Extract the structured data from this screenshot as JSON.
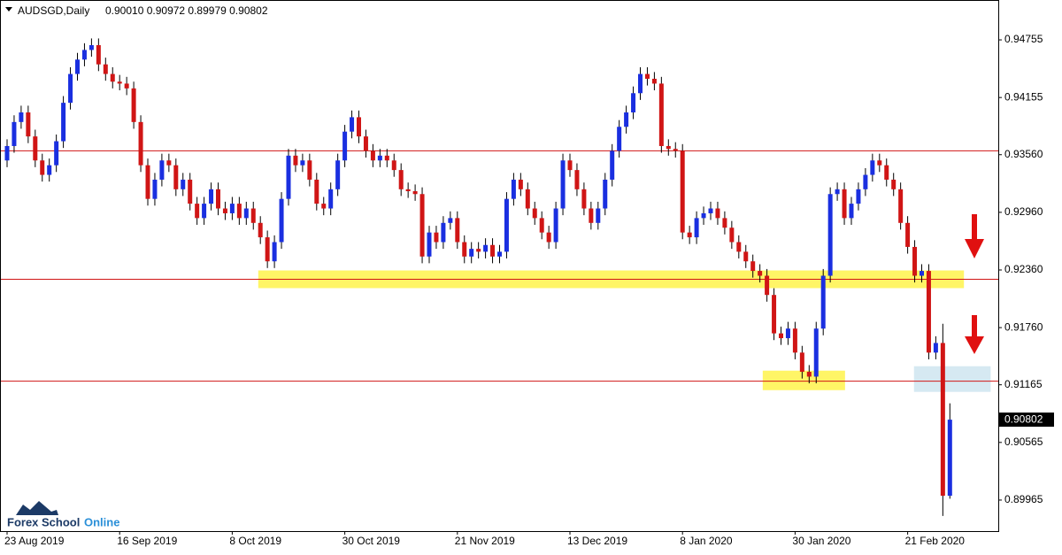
{
  "chart_data": {
    "type": "candlestick",
    "title": "AUDSGD,Daily",
    "ohlc_text": "0.90010 0.90972 0.89979 0.90802",
    "watermark": [
      "Forex School",
      "Online"
    ],
    "up_color": "#1a2fe0",
    "down_color": "#d01515",
    "wick_color": "#000000",
    "categories": [
      "23 Aug 2019",
      null,
      null,
      null,
      null,
      null,
      null,
      null,
      null,
      null,
      null,
      null,
      null,
      null,
      null,
      null,
      "16 Sep 2019",
      null,
      null,
      null,
      null,
      null,
      null,
      null,
      null,
      null,
      null,
      null,
      null,
      null,
      null,
      null,
      "8 Oct 2019",
      null,
      null,
      null,
      null,
      null,
      null,
      null,
      null,
      null,
      null,
      null,
      null,
      null,
      null,
      null,
      "30 Oct 2019",
      null,
      null,
      null,
      null,
      null,
      null,
      null,
      null,
      null,
      null,
      null,
      null,
      null,
      null,
      null,
      "21 Nov 2019",
      null,
      null,
      null,
      null,
      null,
      null,
      null,
      null,
      null,
      null,
      null,
      null,
      null,
      null,
      null,
      "13 Dec 2019",
      null,
      null,
      null,
      null,
      null,
      null,
      null,
      null,
      null,
      null,
      null,
      null,
      null,
      null,
      null,
      "8 Jan 2020",
      null,
      null,
      null,
      null,
      null,
      null,
      null,
      null,
      null,
      null,
      null,
      null,
      null,
      null,
      null,
      "30 Jan 2020",
      null,
      null,
      null,
      null,
      null,
      null,
      null,
      null,
      null,
      null,
      null,
      null,
      null,
      null,
      null,
      "21 Feb 2020",
      null,
      null,
      null,
      null,
      null,
      null
    ],
    "open": [
      0.935,
      0.9365,
      0.939,
      0.94,
      0.9375,
      0.935,
      0.9335,
      0.9345,
      0.937,
      0.941,
      0.944,
      0.9455,
      0.9465,
      0.947,
      0.945,
      0.944,
      0.9432,
      0.943,
      0.9425,
      0.939,
      0.9345,
      0.931,
      0.933,
      0.935,
      0.9345,
      0.932,
      0.933,
      0.9305,
      0.929,
      0.9305,
      0.932,
      0.93,
      0.9295,
      0.9305,
      0.929,
      0.93,
      0.9285,
      0.927,
      0.9245,
      0.9265,
      0.931,
      0.9355,
      0.9345,
      0.935,
      0.933,
      0.9305,
      0.93,
      0.932,
      0.935,
      0.938,
      0.9395,
      0.9375,
      0.936,
      0.935,
      0.9355,
      0.935,
      0.934,
      0.932,
      0.9318,
      0.9315,
      0.925,
      0.9275,
      0.9265,
      0.9285,
      0.929,
      0.9265,
      0.925,
      0.9258,
      0.9255,
      0.9262,
      0.925,
      0.9255,
      0.931,
      0.933,
      0.932,
      0.93,
      0.929,
      0.9275,
      0.9265,
      0.93,
      0.935,
      0.934,
      0.932,
      0.93,
      0.9285,
      0.93,
      0.933,
      0.936,
      0.9385,
      0.94,
      0.942,
      0.944,
      0.9435,
      0.943,
      0.9365,
      0.9362,
      0.936,
      0.9275,
      0.927,
      0.929,
      0.9295,
      0.93,
      0.929,
      0.928,
      0.9265,
      0.9255,
      0.9245,
      0.9235,
      0.923,
      0.921,
      0.917,
      0.9165,
      0.9175,
      0.915,
      0.913,
      0.9125,
      0.9175,
      0.923,
      0.9315,
      0.932,
      0.929,
      0.9305,
      0.932,
      0.9335,
      0.935,
      0.9345,
      0.933,
      0.932,
      0.9285,
      0.926,
      0.923,
      0.9235,
      0.915,
      0.916,
      0.9001
    ],
    "high": [
      0.9372,
      0.9397,
      0.9407,
      0.9407,
      0.9382,
      0.9357,
      0.9352,
      0.9377,
      0.9417,
      0.9447,
      0.9462,
      0.9472,
      0.9477,
      0.9477,
      0.9457,
      0.9447,
      0.9439,
      0.9437,
      0.9432,
      0.9397,
      0.9352,
      0.9337,
      0.9357,
      0.9357,
      0.9352,
      0.9337,
      0.9337,
      0.9312,
      0.9312,
      0.9327,
      0.9327,
      0.9307,
      0.9312,
      0.9312,
      0.9307,
      0.9307,
      0.9292,
      0.9277,
      0.9272,
      0.9317,
      0.9362,
      0.9362,
      0.9357,
      0.9357,
      0.9337,
      0.9312,
      0.9327,
      0.9357,
      0.9387,
      0.9402,
      0.9402,
      0.9382,
      0.9367,
      0.9362,
      0.9362,
      0.9357,
      0.9347,
      0.9327,
      0.9325,
      0.9322,
      0.9282,
      0.9282,
      0.9292,
      0.9297,
      0.9297,
      0.9272,
      0.9265,
      0.9265,
      0.9269,
      0.9269,
      0.9262,
      0.9317,
      0.9337,
      0.9337,
      0.9327,
      0.9307,
      0.9297,
      0.9282,
      0.9307,
      0.9357,
      0.9357,
      0.9347,
      0.9327,
      0.9307,
      0.9307,
      0.9337,
      0.9367,
      0.9392,
      0.9407,
      0.9427,
      0.9447,
      0.9447,
      0.9442,
      0.9437,
      0.9372,
      0.9369,
      0.9367,
      0.9282,
      0.9297,
      0.9302,
      0.9307,
      0.9307,
      0.9297,
      0.9287,
      0.9272,
      0.9262,
      0.9252,
      0.9242,
      0.9237,
      0.9217,
      0.9177,
      0.9182,
      0.9182,
      0.9157,
      0.9137,
      0.9182,
      0.9237,
      0.9322,
      0.9327,
      0.9327,
      0.9312,
      0.9327,
      0.9342,
      0.9357,
      0.9357,
      0.9352,
      0.9337,
      0.9327,
      0.9292,
      0.9267,
      0.9242,
      0.9242,
      0.9167,
      0.918,
      0.90972
    ],
    "low": [
      0.9343,
      0.9358,
      0.9383,
      0.9368,
      0.9343,
      0.9328,
      0.9328,
      0.9338,
      0.9363,
      0.9403,
      0.9433,
      0.9448,
      0.9458,
      0.9443,
      0.9433,
      0.9425,
      0.9423,
      0.9418,
      0.9383,
      0.9338,
      0.9303,
      0.9303,
      0.9323,
      0.9338,
      0.9313,
      0.9313,
      0.9298,
      0.9283,
      0.9283,
      0.9298,
      0.9293,
      0.9288,
      0.9288,
      0.9283,
      0.9283,
      0.9278,
      0.9263,
      0.9238,
      0.9238,
      0.9258,
      0.9303,
      0.9338,
      0.9338,
      0.9323,
      0.9298,
      0.9293,
      0.9293,
      0.9313,
      0.9343,
      0.9373,
      0.9368,
      0.9353,
      0.9343,
      0.9343,
      0.9343,
      0.9333,
      0.9313,
      0.9311,
      0.9308,
      0.9243,
      0.9243,
      0.9258,
      0.9258,
      0.9278,
      0.9258,
      0.9243,
      0.9243,
      0.9248,
      0.9248,
      0.9243,
      0.9243,
      0.9248,
      0.9303,
      0.9313,
      0.9293,
      0.9283,
      0.9268,
      0.9258,
      0.9258,
      0.9293,
      0.9333,
      0.9313,
      0.9293,
      0.9278,
      0.9278,
      0.9293,
      0.9323,
      0.9353,
      0.9378,
      0.9393,
      0.9413,
      0.9428,
      0.9423,
      0.9358,
      0.9355,
      0.9353,
      0.9268,
      0.9263,
      0.9263,
      0.9283,
      0.9288,
      0.9283,
      0.9273,
      0.9258,
      0.9248,
      0.9238,
      0.9228,
      0.9223,
      0.9203,
      0.9163,
      0.9158,
      0.9158,
      0.9143,
      0.9123,
      0.9118,
      0.9118,
      0.9168,
      0.9223,
      0.9308,
      0.9283,
      0.9283,
      0.9298,
      0.9313,
      0.9328,
      0.9338,
      0.9323,
      0.9313,
      0.9278,
      0.9253,
      0.9223,
      0.9223,
      0.9143,
      0.9143,
      0.898,
      0.89979
    ],
    "close": [
      0.9365,
      0.939,
      0.94,
      0.9375,
      0.935,
      0.9335,
      0.9345,
      0.937,
      0.941,
      0.944,
      0.9455,
      0.9465,
      0.947,
      0.945,
      0.944,
      0.9432,
      0.943,
      0.9425,
      0.939,
      0.9345,
      0.931,
      0.933,
      0.935,
      0.9345,
      0.932,
      0.933,
      0.9305,
      0.929,
      0.9305,
      0.932,
      0.93,
      0.9295,
      0.9305,
      0.929,
      0.93,
      0.9285,
      0.927,
      0.9245,
      0.9265,
      0.931,
      0.9355,
      0.9345,
      0.935,
      0.933,
      0.9305,
      0.93,
      0.932,
      0.935,
      0.938,
      0.9395,
      0.9375,
      0.936,
      0.935,
      0.9355,
      0.935,
      0.934,
      0.932,
      0.9318,
      0.9315,
      0.925,
      0.9275,
      0.9265,
      0.9285,
      0.929,
      0.9265,
      0.925,
      0.9258,
      0.9255,
      0.9262,
      0.925,
      0.9255,
      0.931,
      0.933,
      0.932,
      0.93,
      0.929,
      0.9275,
      0.9265,
      0.93,
      0.935,
      0.934,
      0.932,
      0.93,
      0.9285,
      0.93,
      0.933,
      0.936,
      0.9385,
      0.94,
      0.942,
      0.944,
      0.9435,
      0.943,
      0.9365,
      0.9362,
      0.936,
      0.9275,
      0.927,
      0.929,
      0.9295,
      0.93,
      0.929,
      0.928,
      0.9265,
      0.9255,
      0.9245,
      0.9235,
      0.923,
      0.921,
      0.917,
      0.9165,
      0.9175,
      0.915,
      0.913,
      0.9125,
      0.9175,
      0.923,
      0.9315,
      0.932,
      0.929,
      0.9305,
      0.932,
      0.9335,
      0.935,
      0.9345,
      0.933,
      0.932,
      0.9285,
      0.926,
      0.923,
      0.9235,
      0.915,
      0.916,
      0.9001,
      0.90802
    ],
    "ylim": [
      0.89642,
      0.9517
    ],
    "yticks": [
      0.94755,
      0.94155,
      {
        "value": 0.9356,
        "label": "0.93560"
      },
      {
        "value": 0.9296,
        "label": "0.92960"
      },
      {
        "value": 0.9236,
        "label": "0.92360"
      },
      {
        "value": 0.9176,
        "label": "0.91760"
      },
      0.91165,
      0.90565,
      0.89965
    ],
    "hlines": [
      0.936,
      0.92263,
      0.91202
    ],
    "hline_color": "#d01515",
    "zones": [
      {
        "xlim": [
          35.7,
          136
        ],
        "ylim": [
          0.92171,
          0.92355
        ],
        "color": "#fff566"
      },
      {
        "xlim": [
          107.4,
          119.1
        ],
        "ylim": [
          0.91109,
          0.91312
        ],
        "color": "#fff566"
      },
      {
        "xlim": [
          128.9,
          139.8
        ],
        "ylim": [
          0.91091,
          0.91358
        ],
        "color": "#d6e9f2"
      }
    ]
  }
}
